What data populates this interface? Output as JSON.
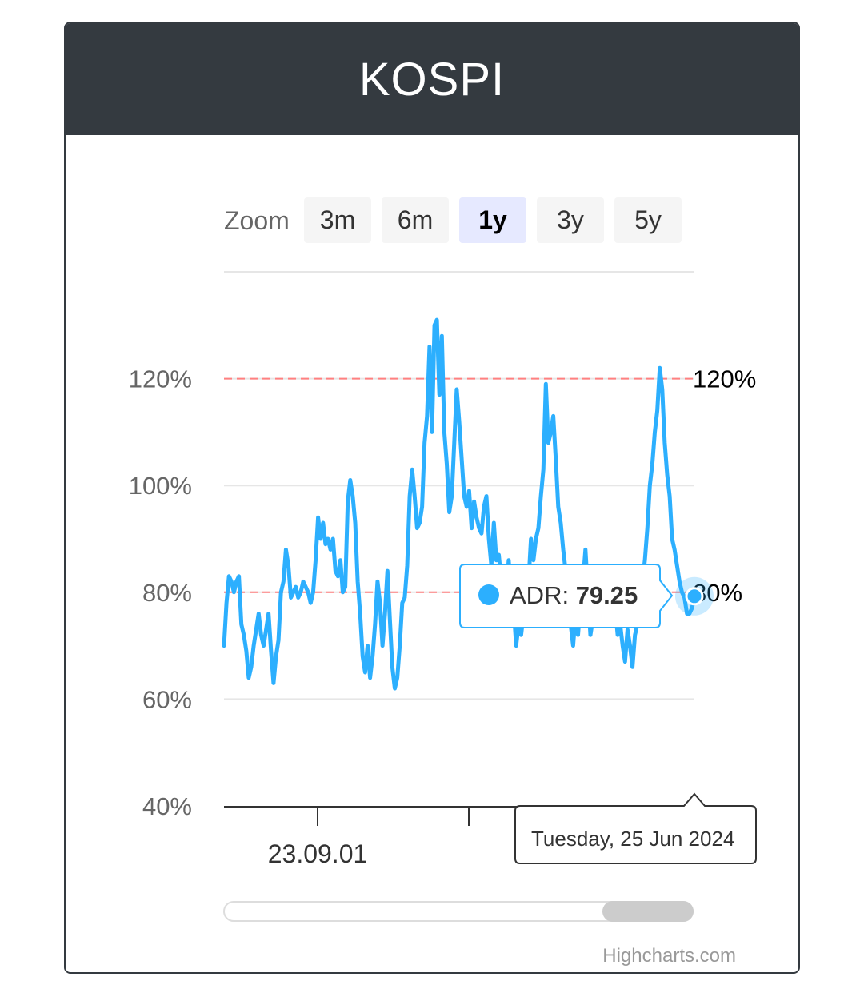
{
  "header": {
    "title": "KOSPI"
  },
  "zoom": {
    "label": "Zoom",
    "buttons": [
      "3m",
      "6m",
      "1y",
      "3y",
      "5y"
    ],
    "selected": "1y"
  },
  "tooltip": {
    "series_name": "ADR",
    "separator": ": ",
    "value": "79.25",
    "date": "Tuesday, 25 Jun 2024"
  },
  "credits": "Highcharts.com",
  "colors": {
    "header_bg": "#343a40",
    "series": "#2caffe",
    "plotline": "#ff8080",
    "zoom_active_bg": "#e6e9ff"
  },
  "chart_data": {
    "type": "line",
    "series": [
      {
        "name": "ADR",
        "values": [
          70,
          78,
          83,
          82,
          80,
          82,
          83,
          74,
          72,
          69,
          64,
          66,
          70,
          73,
          76,
          72,
          70,
          73,
          76,
          69,
          63,
          68,
          71,
          80,
          82,
          88,
          85,
          79,
          80,
          81,
          79,
          80,
          82,
          81,
          80,
          78,
          80,
          86,
          94,
          90,
          93,
          89,
          90,
          88,
          90,
          84,
          83,
          86,
          80,
          81,
          97,
          101,
          98,
          93,
          82,
          76,
          68,
          65,
          70,
          64,
          68,
          74,
          82,
          78,
          70,
          76,
          84,
          75,
          66,
          62,
          64,
          70,
          78,
          79,
          85,
          98,
          103,
          98,
          92,
          93,
          96,
          108,
          113,
          126,
          110,
          130,
          131,
          117,
          128,
          110,
          104,
          95,
          98,
          108,
          118,
          112,
          105,
          98,
          96,
          99,
          92,
          97,
          94,
          92,
          91,
          96,
          98,
          90,
          85,
          93,
          86,
          87,
          82,
          82,
          80,
          86,
          79,
          77,
          70,
          74,
          72,
          76,
          80,
          82,
          90,
          86,
          90,
          92,
          98,
          103,
          119,
          108,
          110,
          113,
          105,
          96,
          93,
          88,
          84,
          78,
          74,
          70,
          76,
          72,
          78,
          82,
          88,
          80,
          72,
          75,
          79,
          83,
          82,
          76,
          82,
          74,
          78,
          80,
          77,
          72,
          74,
          70,
          67,
          73,
          70,
          66,
          72,
          74,
          78,
          82,
          86,
          92,
          100,
          104,
          110,
          114,
          122,
          118,
          108,
          102,
          98,
          90,
          88,
          85,
          82,
          80,
          79,
          76,
          76,
          77,
          79
        ]
      }
    ],
    "ylim": [
      40,
      140
    ],
    "yticks": [
      "40%",
      "60%",
      "80%",
      "100%",
      "120%"
    ],
    "xticks": [
      "23.09.01"
    ],
    "plot_lines": [
      {
        "value": 120,
        "label": "120%"
      },
      {
        "value": 80,
        "label": "80%"
      }
    ],
    "grid": true,
    "legend": false,
    "highlighted_point": {
      "date": "Tuesday, 25 Jun 2024",
      "value": 79.25
    }
  }
}
